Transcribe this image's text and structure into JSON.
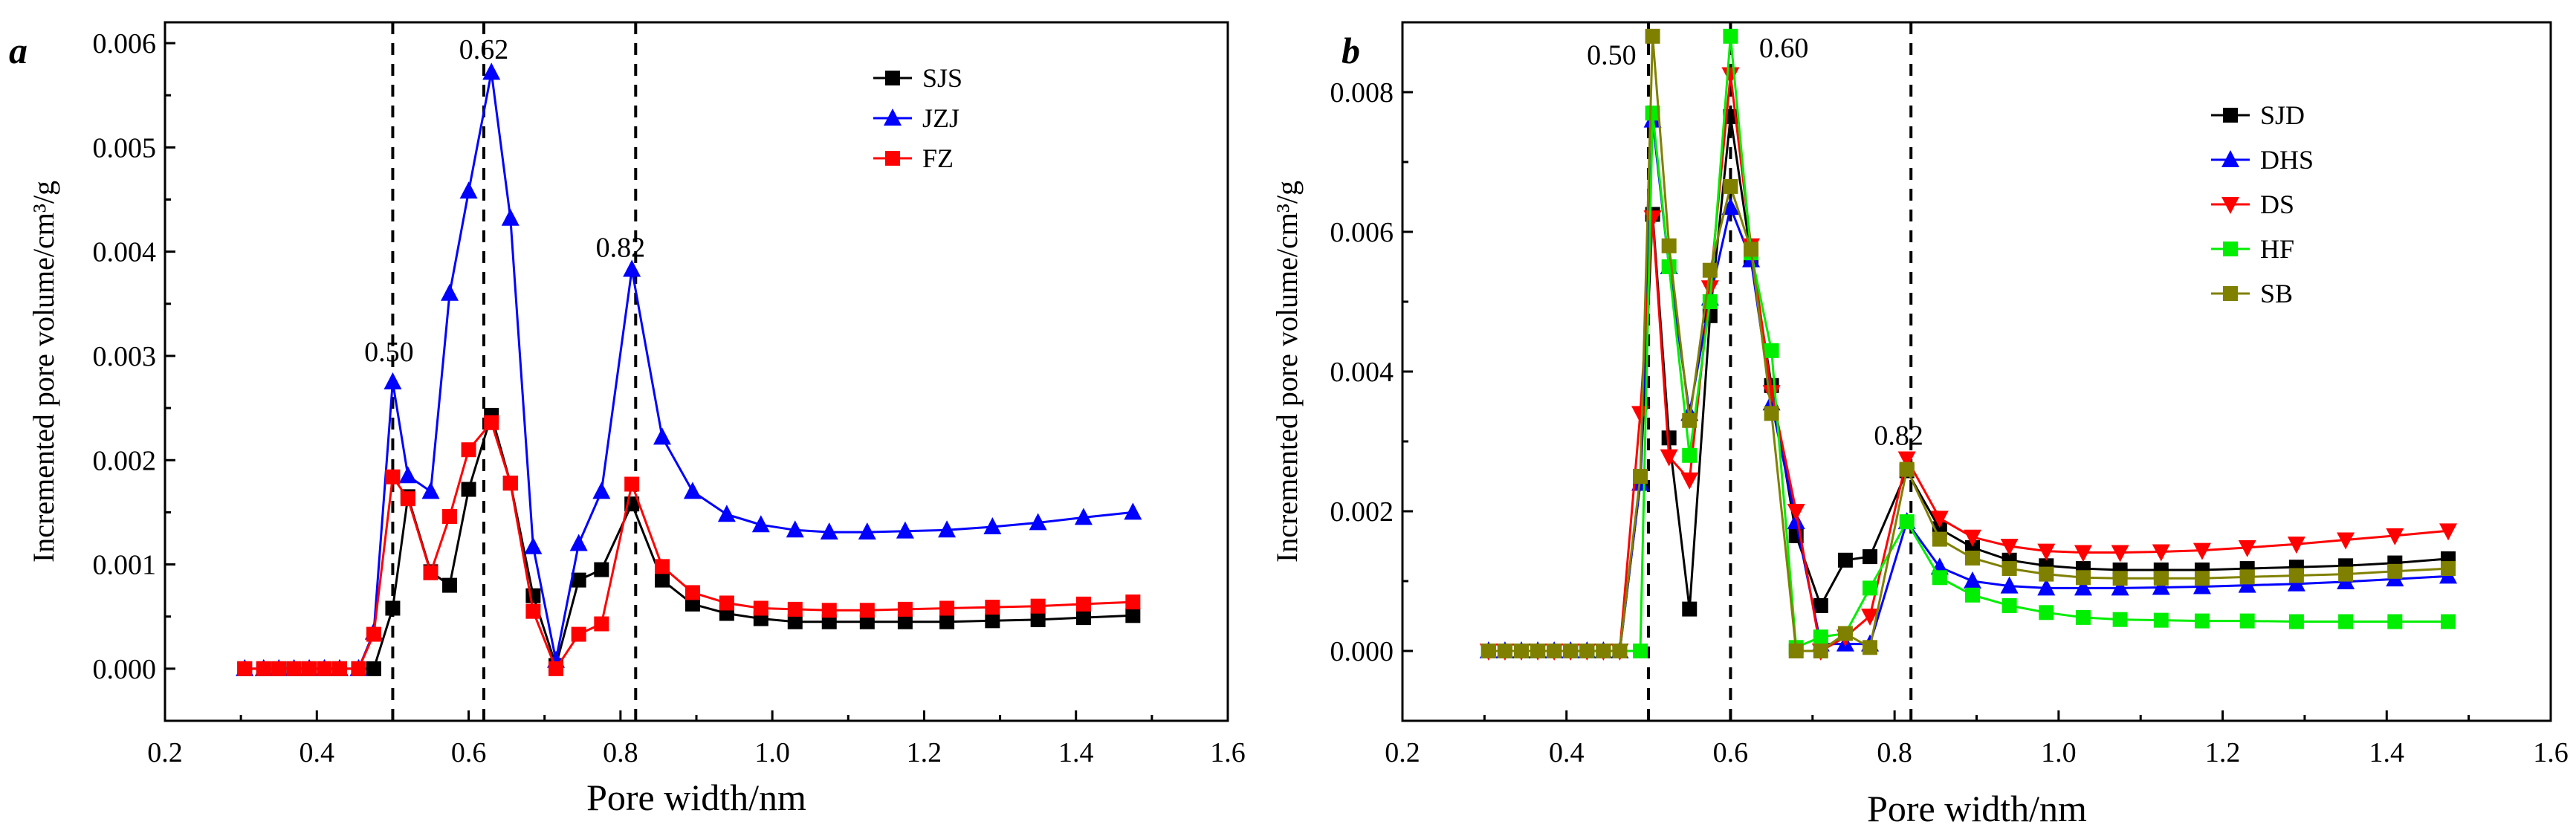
{
  "chart_data": [
    {
      "type": "line",
      "panel": "a",
      "xlabel": "Pore width/nm",
      "ylabel": "Incremented pore volume/cm³/g",
      "xlim": [
        0.2,
        1.6
      ],
      "ylim": [
        -0.0005,
        0.0062
      ],
      "xticks": [
        0.2,
        0.4,
        0.6,
        0.8,
        1.0,
        1.2,
        1.4,
        1.6
      ],
      "xtick_labels": [
        "0.2",
        "0.4",
        "0.6",
        "0.8",
        "1.0",
        "1.2",
        "1.4",
        "1.6"
      ],
      "yticks": [
        0,
        0.001,
        0.002,
        0.003,
        0.004,
        0.005,
        0.006
      ],
      "ytick_labels": [
        "0.000",
        "0.001",
        "0.002",
        "0.003",
        "0.004",
        "0.005",
        "0.006"
      ],
      "legend_position": "top-right",
      "reference_lines": [
        0.5,
        0.62,
        0.82
      ],
      "annotations": [
        {
          "text": "0.50",
          "x": 0.495,
          "y": 0.00295
        },
        {
          "text": "0.62",
          "x": 0.62,
          "y": 0.00585
        },
        {
          "text": "0.82",
          "x": 0.8,
          "y": 0.00395
        }
      ],
      "x": [
        0.305,
        0.33,
        0.35,
        0.37,
        0.39,
        0.41,
        0.43,
        0.455,
        0.475,
        0.5,
        0.52,
        0.55,
        0.575,
        0.6,
        0.63,
        0.655,
        0.685,
        0.715,
        0.745,
        0.775,
        0.815,
        0.855,
        0.895,
        0.94,
        0.985,
        1.03,
        1.075,
        1.125,
        1.175,
        1.23,
        1.29,
        1.35,
        1.41,
        1.475
      ],
      "series": [
        {
          "name": "SJS",
          "color": "#000000",
          "marker": "square",
          "values": [
            0,
            0,
            0,
            0,
            0,
            0,
            0,
            0,
            0,
            0.00058,
            0.00165,
            0.00093,
            0.0008,
            0.00172,
            0.00243,
            0.00178,
            0.0007,
            3e-05,
            0.00085,
            0.00095,
            0.00158,
            0.00085,
            0.00062,
            0.00053,
            0.00048,
            0.00045,
            0.00045,
            0.00045,
            0.00045,
            0.00045,
            0.00046,
            0.00047,
            0.00049,
            0.00051
          ]
        },
        {
          "name": "JZJ",
          "color": "#0000ff",
          "marker": "triangle-up",
          "values": [
            0,
            0,
            0,
            0,
            0,
            0,
            0,
            0,
            0.00035,
            0.00275,
            0.00185,
            0.0017,
            0.0036,
            0.00458,
            0.00572,
            0.00432,
            0.00117,
            8e-05,
            0.0012,
            0.0017,
            0.00383,
            0.00222,
            0.0017,
            0.00148,
            0.00138,
            0.00133,
            0.00131,
            0.00131,
            0.00132,
            0.00133,
            0.00136,
            0.0014,
            0.00145,
            0.0015
          ]
        },
        {
          "name": "FZ",
          "color": "#ff0000",
          "marker": "square",
          "values": [
            0,
            0,
            0,
            0,
            0,
            0,
            0,
            0,
            0.00033,
            0.00184,
            0.00163,
            0.00092,
            0.00146,
            0.0021,
            0.00236,
            0.00178,
            0.00055,
            0,
            0.00033,
            0.00043,
            0.00177,
            0.00098,
            0.00073,
            0.00063,
            0.00058,
            0.00057,
            0.00056,
            0.00056,
            0.00057,
            0.00058,
            0.00059,
            0.0006,
            0.00062,
            0.00064
          ]
        }
      ]
    },
    {
      "type": "line",
      "panel": "b",
      "xlabel": "Pore width/nm",
      "ylabel": "Incremented pore volume/cm³/g",
      "xlim": [
        0.2,
        1.6
      ],
      "ylim": [
        -0.001,
        0.009
      ],
      "xticks": [
        0.2,
        0.4,
        0.6,
        0.8,
        1.0,
        1.2,
        1.4,
        1.6
      ],
      "xtick_labels": [
        "0.2",
        "0.4",
        "0.6",
        "0.8",
        "1.0",
        "1.2",
        "1.4",
        "1.6"
      ],
      "yticks": [
        0,
        0.002,
        0.004,
        0.006,
        0.008
      ],
      "ytick_labels": [
        "0.000",
        "0.002",
        "0.004",
        "0.006",
        "0.008"
      ],
      "legend_position": "top-right",
      "reference_lines": [
        0.5,
        0.6,
        0.82
      ],
      "annotations": [
        {
          "text": "0.50",
          "x": 0.455,
          "y": 0.0084
        },
        {
          "text": "0.60",
          "x": 0.665,
          "y": 0.0085
        },
        {
          "text": "0.82",
          "x": 0.805,
          "y": 0.00295
        }
      ],
      "x": [
        0.305,
        0.325,
        0.345,
        0.365,
        0.385,
        0.405,
        0.425,
        0.445,
        0.465,
        0.49,
        0.505,
        0.525,
        0.55,
        0.575,
        0.6,
        0.625,
        0.65,
        0.68,
        0.71,
        0.74,
        0.77,
        0.815,
        0.855,
        0.895,
        0.94,
        0.985,
        1.03,
        1.075,
        1.125,
        1.175,
        1.23,
        1.29,
        1.35,
        1.41,
        1.475
      ],
      "series": [
        {
          "name": "SJD",
          "color": "#000000",
          "marker": "square",
          "values": [
            0,
            0,
            0,
            0,
            0,
            0,
            0,
            0,
            0,
            0.0024,
            0.00625,
            0.00305,
            0.0006,
            0.0048,
            0.00765,
            0.00565,
            0.0038,
            0.00165,
            0.00065,
            0.0013,
            0.00135,
            0.00258,
            0.00175,
            0.00148,
            0.0013,
            0.00122,
            0.00118,
            0.00116,
            0.00116,
            0.00116,
            0.00118,
            0.0012,
            0.00122,
            0.00126,
            0.00132
          ]
        },
        {
          "name": "DHS",
          "color": "#0000ff",
          "marker": "triangle-up",
          "values": [
            0,
            0,
            0,
            0,
            0,
            0,
            0,
            0,
            0,
            0.0024,
            0.0076,
            0.0055,
            0.0034,
            0.00505,
            0.00635,
            0.0056,
            0.00355,
            0.00185,
            0.0001,
            0.0001,
            0.0001,
            0.00185,
            0.0012,
            0.001,
            0.00093,
            0.0009,
            0.0009,
            0.0009,
            0.00091,
            0.00092,
            0.00094,
            0.00096,
            0.00099,
            0.00103,
            0.00107
          ]
        },
        {
          "name": "DS",
          "color": "#ff0000",
          "marker": "triangle-down",
          "values": [
            0,
            0,
            0,
            0,
            0,
            0,
            0,
            0,
            0,
            0.0034,
            0.0062,
            0.00278,
            0.00245,
            0.0052,
            0.00825,
            0.0058,
            0.0037,
            0.002,
            0,
            0.0002,
            0.0005,
            0.00275,
            0.0019,
            0.00163,
            0.0015,
            0.00143,
            0.00141,
            0.00141,
            0.00142,
            0.00144,
            0.00148,
            0.00153,
            0.00159,
            0.00165,
            0.00172
          ]
        },
        {
          "name": "HF",
          "color": "#00ee00",
          "marker": "square",
          "values": [
            0,
            0,
            0,
            0,
            0,
            0,
            0,
            0,
            0,
            0,
            0.0077,
            0.0055,
            0.0028,
            0.005,
            0.0088,
            0.0057,
            0.0043,
            5e-05,
            0.0002,
            0.00025,
            0.0009,
            0.00185,
            0.00105,
            0.0008,
            0.00065,
            0.00055,
            0.00048,
            0.00045,
            0.00044,
            0.00043,
            0.00043,
            0.00042,
            0.00042,
            0.00042,
            0.00042
          ]
        },
        {
          "name": "SB",
          "color": "#808000",
          "marker": "square",
          "values": [
            0,
            0,
            0,
            0,
            0,
            0,
            0,
            0,
            0,
            0.0025,
            0.0088,
            0.0058,
            0.0033,
            0.00545,
            0.00665,
            0.00575,
            0.0034,
            0,
            0,
            0.00025,
            5e-05,
            0.0026,
            0.0016,
            0.00133,
            0.00118,
            0.0011,
            0.00105,
            0.00104,
            0.00104,
            0.00104,
            0.00106,
            0.00108,
            0.0011,
            0.00114,
            0.00118
          ]
        }
      ]
    }
  ]
}
